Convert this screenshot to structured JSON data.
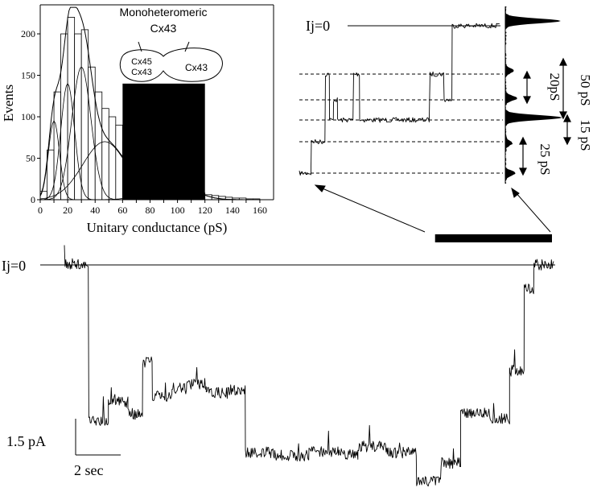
{
  "chart_data": [
    {
      "type": "bar",
      "xlabel": "Unitary conductance (pS)",
      "ylabel": "Events",
      "xlim": [
        0,
        170
      ],
      "ylim": [
        0,
        235
      ],
      "x_ticks": [
        0,
        10,
        20,
        30,
        40,
        50,
        60,
        70,
        80,
        90,
        100,
        110,
        120,
        130,
        140,
        150,
        160
      ],
      "y_ticks": [
        0,
        50,
        100,
        150,
        200
      ],
      "bin_width": 5,
      "bin_starts": [
        0,
        5,
        10,
        15,
        20,
        25,
        30,
        35,
        40,
        45,
        50,
        55,
        60,
        65,
        70,
        75,
        80,
        85,
        90,
        95,
        100,
        105,
        110,
        115,
        120,
        125,
        130,
        135,
        140,
        145,
        150,
        155
      ],
      "counts": [
        10,
        60,
        130,
        200,
        220,
        200,
        205,
        160,
        130,
        110,
        100,
        90,
        70,
        55,
        50,
        40,
        30,
        25,
        20,
        18,
        15,
        12,
        10,
        8,
        6,
        5,
        4,
        3,
        2,
        2,
        1,
        1
      ],
      "gaussian_components": [
        {
          "mean": 10,
          "sd": 4,
          "peak": 95
        },
        {
          "mean": 20,
          "sd": 5,
          "peak": 140
        },
        {
          "mean": 30,
          "sd": 7,
          "peak": 160
        },
        {
          "mean": 47,
          "sd": 16,
          "peak": 70
        },
        {
          "mean": 95,
          "sd": 15,
          "peak": 22
        }
      ],
      "diagram": {
        "title_line1": "Monoheteromeric",
        "title_line2": "Cx43",
        "left_cell_line1": "Cx45",
        "left_cell_line2": "Cx43",
        "right_cell": "Cx43"
      },
      "highlight_range": [
        60,
        120
      ],
      "highlight_top": 140
    },
    {
      "type": "line",
      "title": "inset",
      "zero_label": "Ij=0",
      "levels": [
        {
          "name": "zero"
        },
        {
          "name": "L1"
        },
        {
          "name": "L2"
        },
        {
          "name": "L3"
        },
        {
          "name": "L4"
        },
        {
          "name": "L5"
        }
      ],
      "annotations": [
        "20pS",
        "50 pS",
        "15 pS",
        "25 pS"
      ],
      "segments": [
        {
          "t": 0.0,
          "level": 5
        },
        {
          "t": 0.06,
          "level": 4
        },
        {
          "t": 0.13,
          "level": 1
        },
        {
          "t": 0.15,
          "level": 3
        },
        {
          "t": 0.17,
          "level": 2
        },
        {
          "t": 0.19,
          "level": 3
        },
        {
          "t": 0.27,
          "level": 1
        },
        {
          "t": 0.3,
          "level": 3
        },
        {
          "t": 0.65,
          "level": 1
        },
        {
          "t": 0.72,
          "level": 2
        },
        {
          "t": 0.76,
          "level": 0
        },
        {
          "t": 1.0,
          "level": 0
        }
      ]
    },
    {
      "type": "line",
      "title": "main_trace",
      "zero_label": "Ij=0",
      "scale_current": "1.5 pA",
      "scale_time": "2 sec",
      "segments": [
        {
          "t": 0.0,
          "y": 0.0
        },
        {
          "t": 0.05,
          "y": -10.5
        },
        {
          "t": 0.09,
          "y": -9.2
        },
        {
          "t": 0.13,
          "y": -10.0
        },
        {
          "t": 0.16,
          "y": -6.5
        },
        {
          "t": 0.18,
          "y": -8.8
        },
        {
          "t": 0.22,
          "y": -8.3
        },
        {
          "t": 0.25,
          "y": -8.0
        },
        {
          "t": 0.29,
          "y": -8.6
        },
        {
          "t": 0.34,
          "y": -8.4
        },
        {
          "t": 0.37,
          "y": -12.6
        },
        {
          "t": 0.43,
          "y": -12.8
        },
        {
          "t": 0.5,
          "y": -12.5
        },
        {
          "t": 0.56,
          "y": -12.7
        },
        {
          "t": 0.6,
          "y": -12.2
        },
        {
          "t": 0.66,
          "y": -12.6
        },
        {
          "t": 0.72,
          "y": -14.5
        },
        {
          "t": 0.77,
          "y": -13.3
        },
        {
          "t": 0.81,
          "y": -9.9
        },
        {
          "t": 0.87,
          "y": -10.3
        },
        {
          "t": 0.91,
          "y": -7.1
        },
        {
          "t": 0.94,
          "y": -1.6
        },
        {
          "t": 0.96,
          "y": 0.0
        },
        {
          "t": 1.0,
          "y": 0.0
        }
      ],
      "inset_bar": [
        0.84,
        1.0
      ]
    }
  ]
}
